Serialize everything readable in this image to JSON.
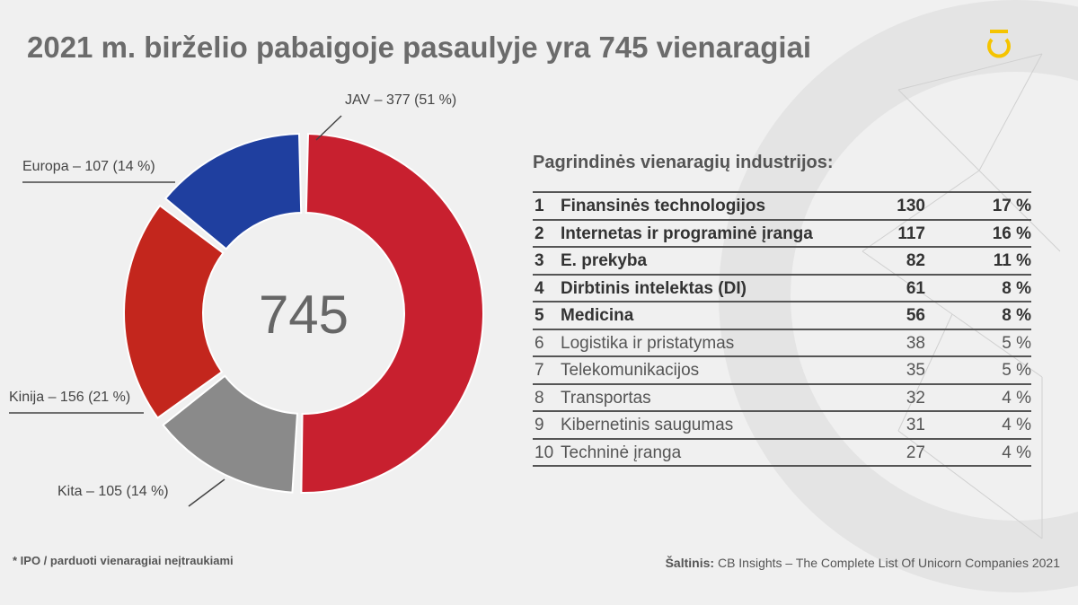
{
  "title": "2021 m. birželio pabaigoje pasaulyje yra 745 vienaragiai",
  "chart_data": {
    "type": "donut",
    "values": [
      377,
      105,
      156,
      107
    ],
    "value_labels": [
      "JAV – 377 (51 %)",
      "Kita – 105 (14 %)",
      "Kinija – 156 (21 %)",
      "Europa – 107 (14 %)"
    ],
    "colors": [
      "#c8202f",
      "#8a8a8a",
      "#c3261d",
      "#1f3f9f"
    ],
    "center_label": "745"
  },
  "table": {
    "title": "Pagrindinės vienaragių industrijos:",
    "rows": [
      [
        "1",
        "Finansinės technologijos",
        "130",
        "17 %"
      ],
      [
        "2",
        "Internetas ir programinė įranga",
        "117",
        "16 %"
      ],
      [
        "3",
        "E. prekyba",
        "82",
        "11 %"
      ],
      [
        "4",
        "Dirbtinis intelektas (DI)",
        "61",
        "8 %"
      ],
      [
        "5",
        "Medicina",
        "56",
        "8 %"
      ],
      [
        "6",
        "Logistika ir pristatymas",
        "38",
        "5 %"
      ],
      [
        "7",
        "Telekomunikacijos",
        "35",
        "5 %"
      ],
      [
        "8",
        "Transportas",
        "32",
        "4 %"
      ],
      [
        "9",
        "Kibernetinis saugumas",
        "31",
        "4 %"
      ],
      [
        "10",
        "Techninė įranga",
        "27",
        "4 %"
      ]
    ]
  },
  "footnote": "* IPO / parduoti vienaragiai neįtraukiami",
  "source_label": "Šaltinis:",
  "source": "CB Insights – The Complete List Of Unicorn Companies 2021"
}
